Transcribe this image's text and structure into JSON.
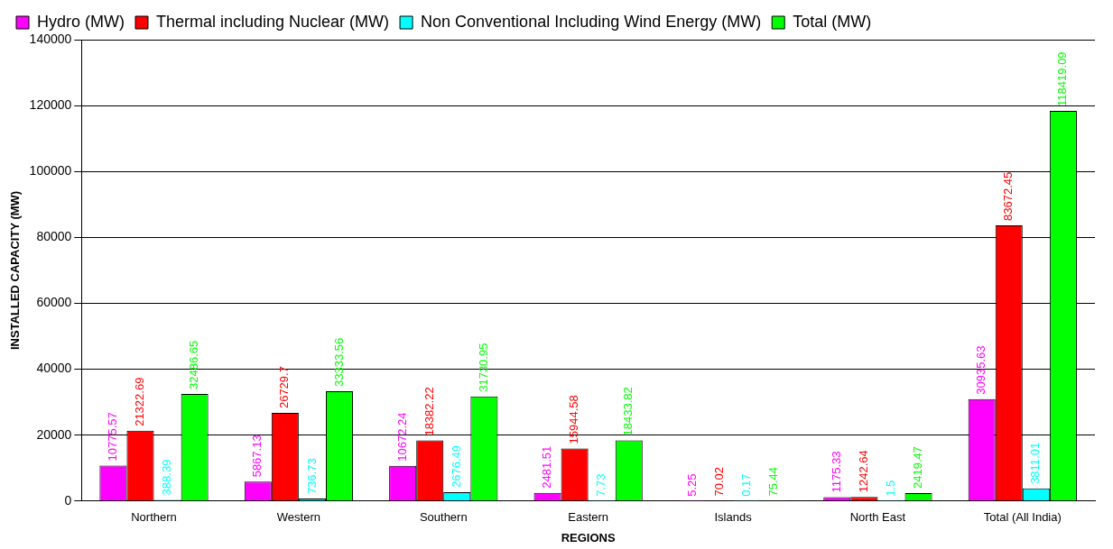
{
  "chart_data": {
    "type": "bar",
    "xlabel": "REGIONS",
    "ylabel": "INSTALLED CAPACITY (MW)",
    "categories": [
      "Northern",
      "Western",
      "Southern",
      "Eastern",
      "Islands",
      "North East",
      "Total (All India)"
    ],
    "series": [
      {
        "name": "Hydro (MW)",
        "color": "#ff00ff",
        "values": [
          10775.57,
          5867.13,
          10672.24,
          2481.51,
          5.25,
          1175.33,
          30935.63
        ]
      },
      {
        "name": "Thermal including Nuclear (MW)",
        "color": "#ff0000",
        "values": [
          21322.69,
          26729.7,
          18382.22,
          15944.58,
          70.02,
          1242.64,
          83672.45
        ]
      },
      {
        "name": "Non Conventional Including Wind Energy (MW)",
        "color": "#00ffff",
        "values": [
          388.39,
          736.73,
          2676.49,
          7.73,
          0.17,
          1.5,
          3811.01
        ]
      },
      {
        "name": "Total (MW)",
        "color": "#00ff00",
        "values": [
          32486.65,
          33333.56,
          31730.95,
          18433.82,
          75.44,
          2419.47,
          118419.09
        ]
      }
    ],
    "ylim": [
      0,
      140000
    ],
    "yticks": [
      0,
      20000,
      40000,
      60000,
      80000,
      100000,
      120000,
      140000
    ],
    "grid": "y",
    "legend": "top",
    "data_labels": true
  }
}
